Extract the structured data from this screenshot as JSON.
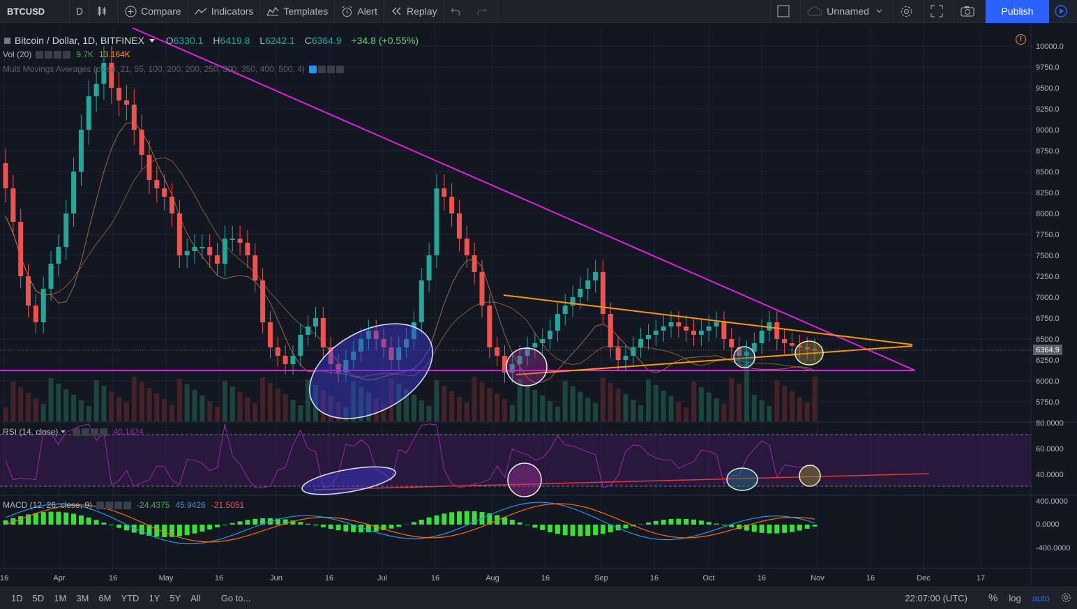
{
  "toolbar": {
    "symbol": "BTCUSD",
    "interval": "D",
    "compare": "Compare",
    "indicators": "Indicators",
    "templates": "Templates",
    "alert": "Alert",
    "replay": "Replay",
    "layout_name": "Unnamed",
    "publish": "Publish"
  },
  "legend": {
    "title": "Bitcoin / Dollar, 1D, BITFINEX",
    "o_label": "O",
    "o_value": "6330.1",
    "h_label": "H",
    "h_value": "6419.8",
    "l_label": "L",
    "l_value": "6242.1",
    "c_label": "C",
    "c_value": "6364.9",
    "change": "+34.8 (+0.55%)"
  },
  "volume": {
    "label": "Vol (20)",
    "value1": "9.7K",
    "value2": "13.164K"
  },
  "mma": {
    "label": "Multi Movings Averages (close, 21, 55, 100, 200, 200, 250, 300, 350, 400, 500, 4)"
  },
  "rsi": {
    "label": "RSI (14, close)",
    "value": "40.1824"
  },
  "macd": {
    "label": "MACD (12, 26, close, 9)",
    "v1": "-24.4375",
    "v2": "45.9426",
    "v3": "-21.5051"
  },
  "price_axis": [
    "10000.0",
    "9750.0",
    "9500.0",
    "9250.0",
    "9000.0",
    "8750.0",
    "8500.0",
    "8250.0",
    "8000.0",
    "7750.0",
    "7500.0",
    "7250.0",
    "7000.0",
    "6750.0",
    "6500.0",
    "6250.0",
    "6000.0",
    "5750.0"
  ],
  "current_price": "6364.9",
  "rsi_axis": [
    "80.0000",
    "60.0000",
    "40.0000"
  ],
  "macd_axis": [
    "400.0000",
    "0.0000",
    "-400.0000"
  ],
  "time_axis": [
    "16",
    "Apr",
    "16",
    "May",
    "16",
    "Jun",
    "16",
    "Jul",
    "16",
    "Aug",
    "16",
    "Sep",
    "16",
    "Oct",
    "16",
    "Nov",
    "16",
    "Dec",
    "17"
  ],
  "bottom": {
    "ranges": [
      "1D",
      "5D",
      "1M",
      "3M",
      "6M",
      "YTD",
      "1Y",
      "5Y",
      "All"
    ],
    "goto": "Go to...",
    "time": "22:07:00 (UTC)",
    "percent": "%",
    "log": "log",
    "auto": "auto"
  },
  "colors": {
    "up": "#26a69a",
    "down": "#ef5350",
    "trend_magenta": "#e020e0",
    "trend_orange": "#ff9800",
    "accent": "#2962ff"
  },
  "chart_data": {
    "type": "candlestick",
    "interval": "1D",
    "price_range": [
      5600,
      10150
    ],
    "key_levels": {
      "horizontal_support": 6120,
      "last_close": 6364.9
    },
    "closes": [
      8300,
      7900,
      7250,
      6900,
      6700,
      7100,
      7400,
      7600,
      8000,
      8500,
      9000,
      9400,
      9550,
      9800,
      9500,
      9350,
      9300,
      9000,
      8700,
      8400,
      8300,
      8200,
      8000,
      7500,
      7550,
      7600,
      7600,
      7500,
      7400,
      7700,
      7700,
      7650,
      7500,
      7200,
      6700,
      6400,
      6300,
      6200,
      6300,
      6550,
      6650,
      6750,
      6400,
      6200,
      6100,
      6250,
      6350,
      6500,
      6600,
      6500,
      6400,
      6250,
      6400,
      6500,
      6700,
      7200,
      7500,
      8300,
      8200,
      8000,
      7700,
      7500,
      7300,
      6900,
      6400,
      6300,
      6100,
      6200,
      6300,
      6400,
      6450,
      6500,
      6600,
      6800,
      6900,
      7000,
      7100,
      7200,
      7300,
      6800,
      6400,
      6250,
      6300,
      6400,
      6500,
      6550,
      6600,
      6650,
      6700,
      6650,
      6600,
      6550,
      6600,
      6650,
      6700,
      6500,
      6400,
      6300,
      6350,
      6450,
      6600,
      6700,
      6500,
      6450,
      6420,
      6400,
      6380,
      6364.9
    ]
  }
}
